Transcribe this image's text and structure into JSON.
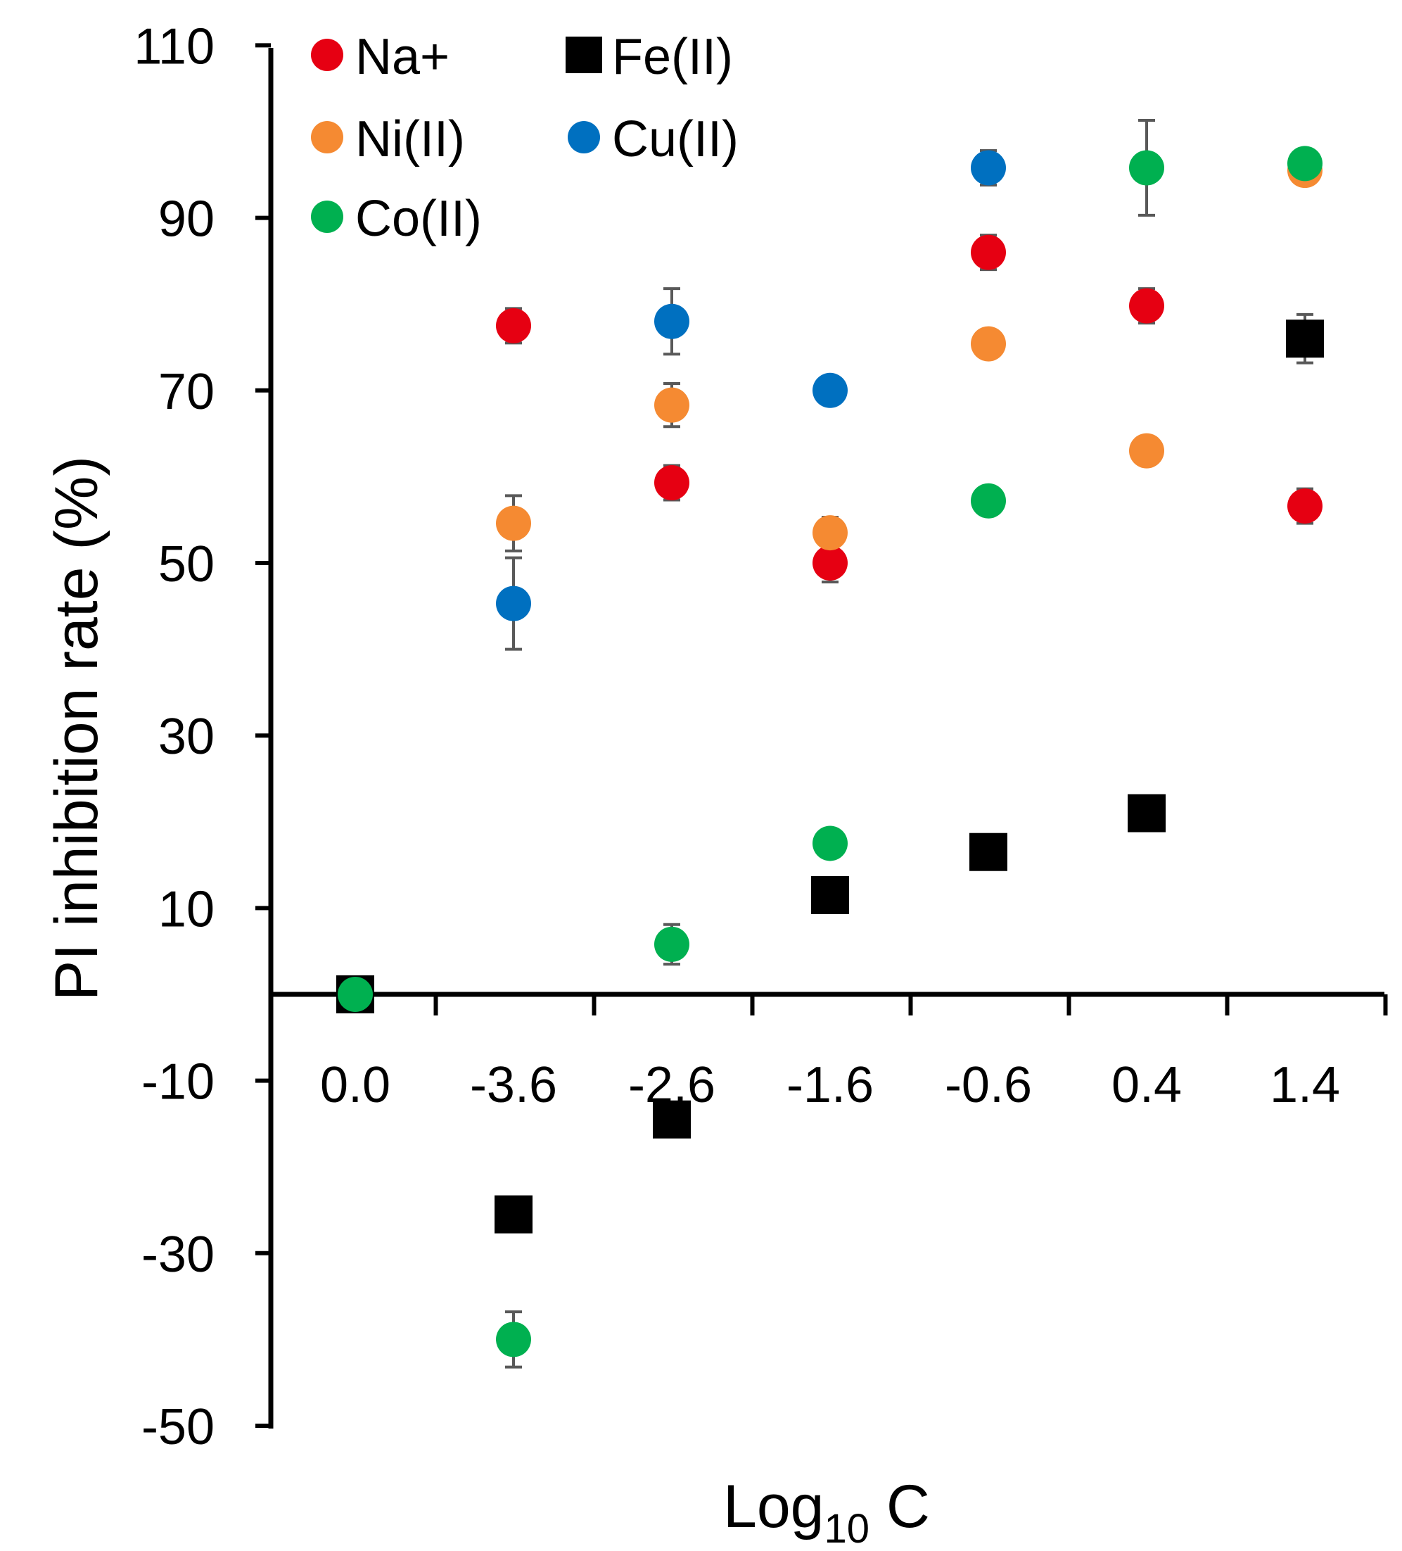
{
  "chart_data": {
    "type": "scatter",
    "title": "",
    "xlabel": "Log",
    "xlabel_subscript": "10",
    "xlabel_suffix": " C",
    "ylabel": "PI inhibition rate (%)",
    "ylim": [
      -50,
      110
    ],
    "yticks": [
      110,
      90,
      70,
      50,
      30,
      10,
      -10,
      -30,
      -50
    ],
    "categories": [
      "0.0",
      "-3.6",
      "-2.6",
      "-1.6",
      "-0.6",
      "0.4",
      "1.4"
    ],
    "legend_position": "top-left",
    "series": [
      {
        "name": "Na+",
        "marker": "circle",
        "color": "#e60012",
        "values": [
          null,
          77.5,
          59.3,
          50.0,
          86.0,
          79.8,
          56.6
        ],
        "errors": [
          null,
          2.0,
          2.0,
          2.2,
          2.0,
          2.0,
          2.0
        ]
      },
      {
        "name": "Fe(II)",
        "marker": "square",
        "color": "#000000",
        "values": [
          0.0,
          -25.5,
          -14.5,
          11.5,
          16.5,
          21.0,
          76.0
        ],
        "errors": [
          null,
          null,
          null,
          null,
          2.0,
          null,
          2.8
        ]
      },
      {
        "name": "Ni(II)",
        "marker": "circle",
        "color": "#f58a32",
        "values": [
          null,
          54.6,
          68.3,
          53.5,
          75.4,
          63.0,
          95.5
        ],
        "errors": [
          null,
          3.2,
          2.5,
          1.8,
          null,
          null,
          null
        ]
      },
      {
        "name": "Cu(II)",
        "marker": "circle",
        "color": "#0070c0",
        "values": [
          null,
          45.3,
          78.0,
          70.0,
          95.8,
          null,
          null
        ],
        "errors": [
          null,
          5.3,
          3.8,
          null,
          2.0,
          null,
          null
        ]
      },
      {
        "name": "Co(II)",
        "marker": "circle",
        "color": "#00b050",
        "values": [
          0.0,
          -40.0,
          5.8,
          17.5,
          57.2,
          95.8,
          96.3
        ],
        "errors": [
          null,
          3.2,
          2.3,
          1.5,
          null,
          5.5,
          null
        ]
      }
    ]
  }
}
